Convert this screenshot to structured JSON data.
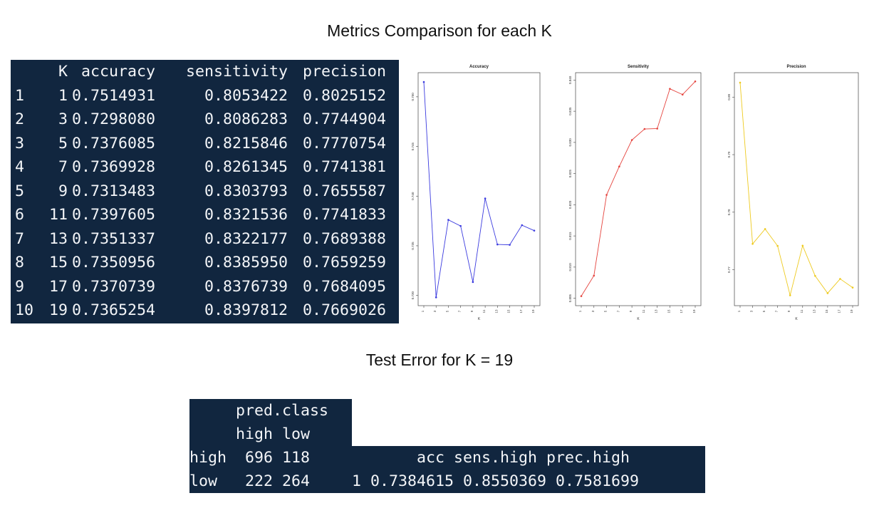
{
  "headings": {
    "metrics": "Metrics Comparison for each K",
    "test_error": "Test Error for K = 19"
  },
  "metrics_table": {
    "headers": [
      "",
      "K",
      "accuracy",
      "sensitivity",
      "precision"
    ],
    "rows": [
      [
        "1",
        "1",
        "0.7514931",
        "0.8053422",
        "0.8025152"
      ],
      [
        "2",
        "3",
        "0.7298080",
        "0.8086283",
        "0.7744904"
      ],
      [
        "3",
        "5",
        "0.7376085",
        "0.8215846",
        "0.7770754"
      ],
      [
        "4",
        "7",
        "0.7369928",
        "0.8261345",
        "0.7741381"
      ],
      [
        "5",
        "9",
        "0.7313483",
        "0.8303793",
        "0.7655587"
      ],
      [
        "6",
        "11",
        "0.7397605",
        "0.8321536",
        "0.7741833"
      ],
      [
        "7",
        "13",
        "0.7351337",
        "0.8322177",
        "0.7689388"
      ],
      [
        "8",
        "15",
        "0.7350956",
        "0.8385950",
        "0.7659259"
      ],
      [
        "9",
        "17",
        "0.7370739",
        "0.8376739",
        "0.7684095"
      ],
      [
        "10",
        "19",
        "0.7365254",
        "0.8397812",
        "0.7669026"
      ]
    ]
  },
  "chart_data": [
    {
      "type": "line",
      "title": "Accuracy",
      "xlabel": "K",
      "ylabel": "",
      "x": [
        1,
        3,
        5,
        7,
        9,
        11,
        13,
        15,
        17,
        19
      ],
      "values": [
        0.7514931,
        0.729808,
        0.7376085,
        0.7369928,
        0.7313483,
        0.7397605,
        0.7351337,
        0.7350956,
        0.7370739,
        0.7365254
      ],
      "ylim": [
        0.7294,
        0.752
      ],
      "yticks": [
        0.73,
        0.735,
        0.74,
        0.745,
        0.75
      ],
      "ytick_labels": [
        "0.730",
        "0.735",
        "0.740",
        "0.745",
        "0.750"
      ],
      "color": "#3b3bdf",
      "grid": false
    },
    {
      "type": "line",
      "title": "Sensitivity",
      "xlabel": "K",
      "ylabel": "",
      "x": [
        1,
        3,
        5,
        7,
        9,
        11,
        13,
        15,
        17,
        19
      ],
      "values": [
        0.8053422,
        0.8086283,
        0.8215846,
        0.8261345,
        0.8303793,
        0.8321536,
        0.8322177,
        0.838595,
        0.8376739,
        0.8397812
      ],
      "ylim": [
        0.8045,
        0.8405
      ],
      "yticks": [
        0.805,
        0.81,
        0.815,
        0.82,
        0.825,
        0.83,
        0.835,
        0.84
      ],
      "ytick_labels": [
        "0.805",
        "0.810",
        "0.815",
        "0.820",
        "0.825",
        "0.830",
        "0.835",
        "0.840"
      ],
      "color": "#e5433d",
      "grid": false
    },
    {
      "type": "line",
      "title": "Precision",
      "xlabel": "K",
      "ylabel": "",
      "x": [
        1,
        3,
        5,
        7,
        9,
        11,
        13,
        15,
        17,
        19
      ],
      "values": [
        0.8025152,
        0.7744904,
        0.7770754,
        0.7741381,
        0.7655587,
        0.7741833,
        0.7689388,
        0.7659259,
        0.7684095,
        0.7669026
      ],
      "ylim": [
        0.7645,
        0.8035
      ],
      "yticks": [
        0.77,
        0.78,
        0.79,
        0.8
      ],
      "ytick_labels": [
        "0.77",
        "0.78",
        "0.79",
        "0.80"
      ],
      "color": "#eeca1f",
      "grid": false
    }
  ],
  "confusion": {
    "header1": "     pred.class",
    "header2": "     high low",
    "row_high": "high  696 118",
    "row_low": "low   222 264",
    "summary_header": "       acc sens.high prec.high",
    "summary_row": "1 0.7384615 0.8550369 0.7581699"
  }
}
